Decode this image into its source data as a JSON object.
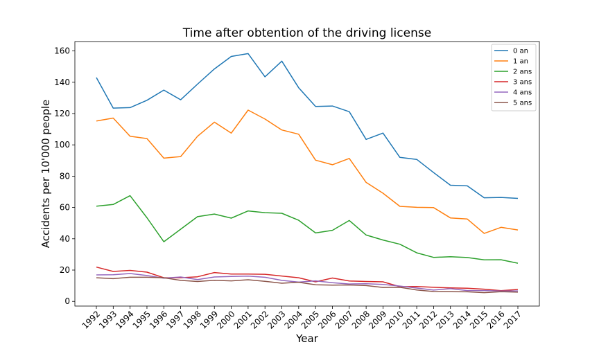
{
  "chart_data": {
    "type": "line",
    "title": "Time after obtention of the driving license",
    "xlabel": "Year",
    "ylabel": "Accidents per 10'000 people",
    "x": [
      "1992",
      "1993",
      "1994",
      "1995",
      "1996",
      "1997",
      "1998",
      "1999",
      "2000",
      "2001",
      "2002",
      "2003",
      "2004",
      "2005",
      "2006",
      "2007",
      "2008",
      "2009",
      "2010",
      "2011",
      "2012",
      "2013",
      "2014",
      "2015",
      "2016",
      "2017"
    ],
    "ylim": [
      -3,
      166
    ],
    "yticks": [
      0,
      20,
      40,
      60,
      80,
      100,
      120,
      140,
      160
    ],
    "grid": false,
    "legend_position": "top-right",
    "series": [
      {
        "name": "0 an",
        "color": "#1f77b4",
        "values": [
          143,
          123.5,
          123.8,
          128.5,
          135,
          128.8,
          138.8,
          148.5,
          156.5,
          158.3,
          143.5,
          153.5,
          136.5,
          124.5,
          124.8,
          121.2,
          103.5,
          107.5,
          92,
          90.7,
          82.3,
          74.2,
          73.8,
          66.2,
          66.4,
          65.8
        ]
      },
      {
        "name": "1 an",
        "color": "#ff7f0e",
        "values": [
          115.2,
          117.1,
          105.5,
          104,
          91.5,
          92.5,
          105.5,
          114.5,
          107.5,
          122.2,
          116.5,
          109.5,
          106.8,
          90.2,
          87.3,
          91.3,
          76,
          69.1,
          60.7,
          60.1,
          59.9,
          53.3,
          52.6,
          43.4,
          47.3,
          45.6
        ]
      },
      {
        "name": "2 ans",
        "color": "#2ca02c",
        "values": [
          60.8,
          61.9,
          67.5,
          53.4,
          38.1,
          46.1,
          54.1,
          55.8,
          53.2,
          57.8,
          56.7,
          56.3,
          51.8,
          43.7,
          45.4,
          51.7,
          42.4,
          39.2,
          36.5,
          31,
          28.1,
          28.5,
          28,
          26.5,
          26.6,
          24.4
        ]
      },
      {
        "name": "3 ans",
        "color": "#d62728",
        "values": [
          21.9,
          19.1,
          19.8,
          18.7,
          15.1,
          15.1,
          15.7,
          18.4,
          17.5,
          17.5,
          17.3,
          16.2,
          15.1,
          12.5,
          14.9,
          13,
          12.7,
          12.5,
          9.4,
          9.5,
          9,
          8.6,
          8.4,
          7.8,
          6.8,
          7.6
        ]
      },
      {
        "name": "4 ans",
        "color": "#9467bd",
        "values": [
          16.9,
          17,
          17.8,
          16.5,
          14.8,
          15.6,
          13.9,
          15.6,
          15.9,
          16.1,
          15.4,
          13.4,
          12.3,
          13.1,
          11.9,
          11.1,
          11.3,
          10.8,
          9.8,
          8.5,
          7.2,
          8.1,
          6.9,
          6.9,
          6.6,
          6.7
        ]
      },
      {
        "name": "5 ans",
        "color": "#8c564b",
        "values": [
          15.1,
          14.5,
          15.4,
          15.4,
          15.1,
          13.4,
          12.7,
          13.5,
          13.1,
          13.8,
          12.8,
          11.6,
          12.2,
          10.6,
          10.4,
          10.5,
          10.1,
          8.9,
          9,
          7.3,
          6.3,
          6.2,
          6.1,
          5.6,
          6.2,
          5.9
        ]
      }
    ]
  }
}
